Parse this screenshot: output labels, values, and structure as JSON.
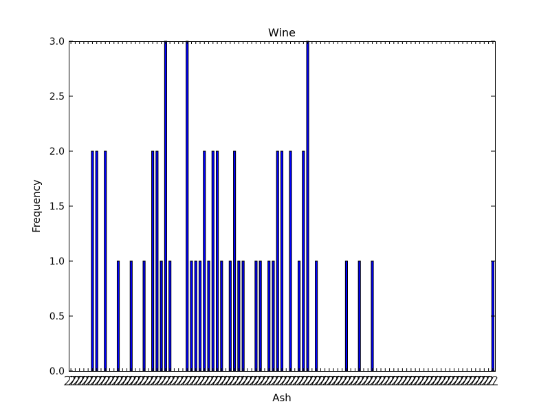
{
  "chart_data": {
    "type": "bar",
    "title": "Wine",
    "xlabel": "Ash",
    "ylabel": "Frequency",
    "ylim": [
      0,
      3.0
    ],
    "y_ticks": [
      "0.0",
      "0.5",
      "1.0",
      "1.5",
      "2.0",
      "2.5",
      "3.0"
    ],
    "x_tick_note": "Category tick labels overlap into an illegible band; their text cannot be read.",
    "bar_color": "#0000ff",
    "edge_color": "#000000",
    "categories_count": 99,
    "bars": [
      {
        "index": 5,
        "value": 2
      },
      {
        "index": 6,
        "value": 2
      },
      {
        "index": 8,
        "value": 2
      },
      {
        "index": 11,
        "value": 1
      },
      {
        "index": 14,
        "value": 1
      },
      {
        "index": 17,
        "value": 1
      },
      {
        "index": 19,
        "value": 2
      },
      {
        "index": 20,
        "value": 2
      },
      {
        "index": 21,
        "value": 1
      },
      {
        "index": 22,
        "value": 3
      },
      {
        "index": 23,
        "value": 1
      },
      {
        "index": 27,
        "value": 3
      },
      {
        "index": 28,
        "value": 1
      },
      {
        "index": 29,
        "value": 1
      },
      {
        "index": 30,
        "value": 1
      },
      {
        "index": 31,
        "value": 2
      },
      {
        "index": 32,
        "value": 1
      },
      {
        "index": 33,
        "value": 2
      },
      {
        "index": 34,
        "value": 2
      },
      {
        "index": 35,
        "value": 1
      },
      {
        "index": 37,
        "value": 1
      },
      {
        "index": 38,
        "value": 2
      },
      {
        "index": 39,
        "value": 1
      },
      {
        "index": 40,
        "value": 1
      },
      {
        "index": 43,
        "value": 1
      },
      {
        "index": 44,
        "value": 1
      },
      {
        "index": 46,
        "value": 1
      },
      {
        "index": 47,
        "value": 1
      },
      {
        "index": 48,
        "value": 2
      },
      {
        "index": 49,
        "value": 2
      },
      {
        "index": 51,
        "value": 2
      },
      {
        "index": 53,
        "value": 1
      },
      {
        "index": 54,
        "value": 2
      },
      {
        "index": 55,
        "value": 3
      },
      {
        "index": 57,
        "value": 1
      },
      {
        "index": 64,
        "value": 1
      },
      {
        "index": 67,
        "value": 1
      },
      {
        "index": 70,
        "value": 1
      },
      {
        "index": 98,
        "value": 1
      }
    ]
  }
}
